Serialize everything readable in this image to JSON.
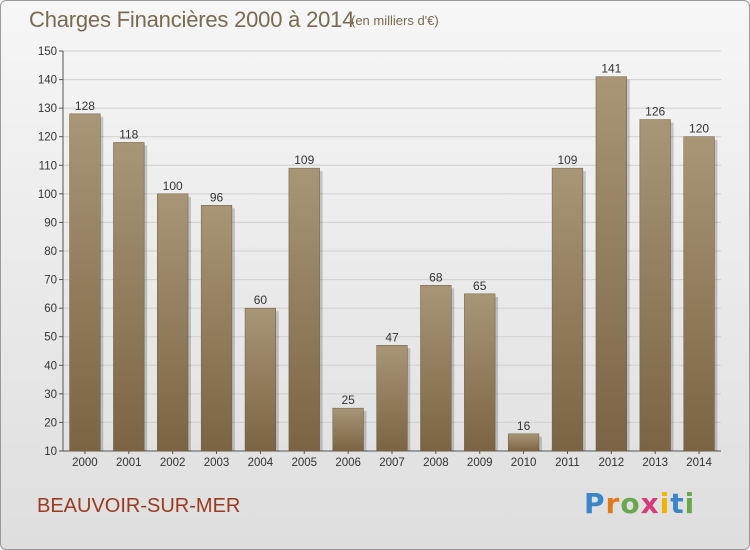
{
  "header": {
    "title": "Charges Financières 2000 à 2014",
    "subtitle": "(en milliers d'€)"
  },
  "footer": {
    "city": "BEAUVOIR-SUR-MER",
    "logo_letters": [
      "P",
      "r",
      "o",
      "x",
      "i",
      "t",
      "i"
    ]
  },
  "colors": {
    "bar_top": "#a89677",
    "bar_bottom": "#7b6443",
    "grid": "#cfcfcf",
    "title": "#7a6a50",
    "city": "#9b3a1e"
  },
  "chart_data": {
    "type": "bar",
    "title": "Charges Financières 2000 à 2014",
    "subtitle": "(en milliers d'€)",
    "xlabel": "",
    "ylabel": "",
    "ylim": [
      10,
      150
    ],
    "yticks": [
      10,
      20,
      30,
      40,
      50,
      60,
      70,
      80,
      90,
      100,
      110,
      120,
      130,
      140,
      150
    ],
    "grid": true,
    "categories": [
      "2000",
      "2001",
      "2002",
      "2003",
      "2004",
      "2005",
      "2006",
      "2007",
      "2008",
      "2009",
      "2010",
      "2011",
      "2012",
      "2013",
      "2014"
    ],
    "values": [
      128,
      118,
      100,
      96,
      60,
      109,
      25,
      47,
      68,
      65,
      16,
      109,
      141,
      126,
      120
    ]
  }
}
